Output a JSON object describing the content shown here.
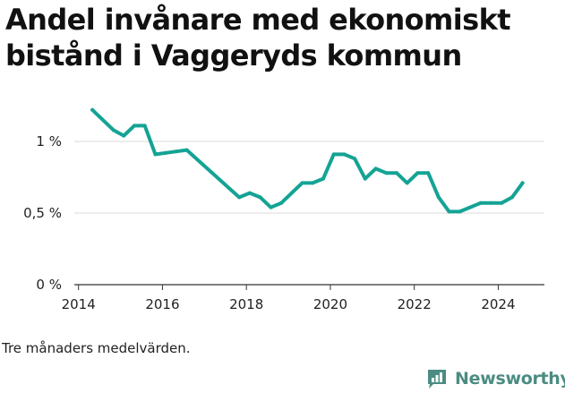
{
  "title": "Andel invånare med ekonomiskt bistånd i Vaggeryds kommun",
  "caption": "Tre månaders medelvärden.",
  "brand": {
    "name": "Newsworthy",
    "icon": "newsworthy-logo-icon",
    "color": "#4c8c83"
  },
  "chart_data": {
    "type": "line",
    "title": "Andel invånare med ekonomiskt bistånd i Vaggeryds kommun",
    "xlabel": "",
    "ylabel": "",
    "xlim": [
      2013.9,
      2025.1
    ],
    "ylim": [
      0,
      1.25
    ],
    "grid": true,
    "line_color": "#14a394",
    "x_ticks": [
      {
        "value": 2014,
        "label": "2014"
      },
      {
        "value": 2016,
        "label": "2016"
      },
      {
        "value": 2018,
        "label": "2018"
      },
      {
        "value": 2020,
        "label": "2020"
      },
      {
        "value": 2022,
        "label": "2022"
      },
      {
        "value": 2024,
        "label": "2024"
      }
    ],
    "y_ticks": [
      {
        "value": 0,
        "label": "0 %"
      },
      {
        "value": 0.5,
        "label": "0,5 %"
      },
      {
        "value": 1,
        "label": "1 %"
      }
    ],
    "series": [
      {
        "name": "Andel invånare med ekonomiskt bistånd",
        "x": [
          2014.33,
          2014.83,
          2015.08,
          2015.33,
          2015.58,
          2015.83,
          2016.08,
          2016.33,
          2016.58,
          2017.83,
          2018.08,
          2018.33,
          2018.58,
          2018.83,
          2019.08,
          2019.33,
          2019.58,
          2019.83,
          2020.08,
          2020.33,
          2020.58,
          2020.83,
          2021.08,
          2021.33,
          2021.58,
          2021.83,
          2022.08,
          2022.33,
          2022.58,
          2022.83,
          2023.08,
          2023.33,
          2023.58,
          2023.83,
          2024.08,
          2024.33,
          2024.58
        ],
        "values": [
          1.22,
          1.08,
          1.04,
          1.11,
          1.11,
          0.91,
          0.92,
          0.93,
          0.94,
          0.61,
          0.64,
          0.61,
          0.54,
          0.57,
          0.64,
          0.71,
          0.71,
          0.74,
          0.91,
          0.91,
          0.88,
          0.74,
          0.81,
          0.78,
          0.78,
          0.71,
          0.78,
          0.78,
          0.61,
          0.51,
          0.51,
          0.54,
          0.57,
          0.57,
          0.57,
          0.61,
          0.71
        ]
      }
    ]
  }
}
